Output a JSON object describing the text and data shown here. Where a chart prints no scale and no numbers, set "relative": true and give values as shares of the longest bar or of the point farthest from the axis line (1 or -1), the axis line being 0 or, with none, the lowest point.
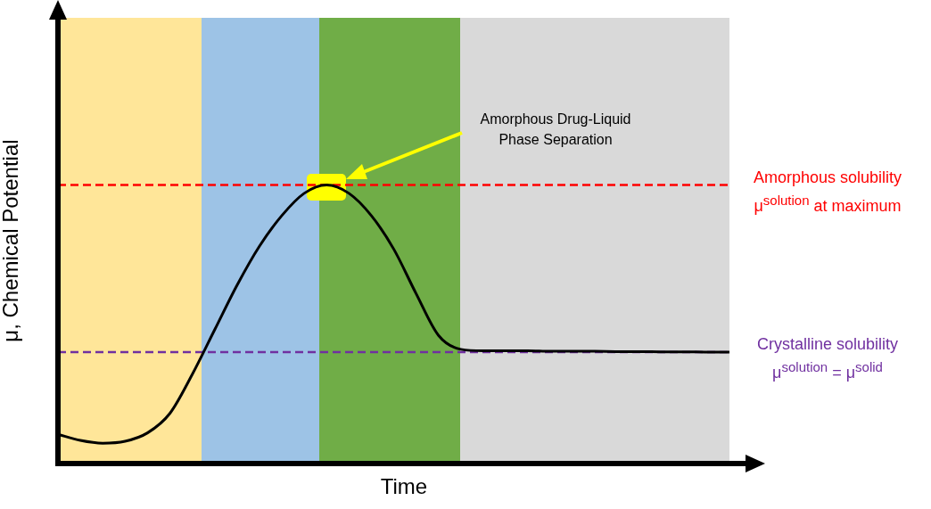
{
  "chart_data": {
    "type": "line",
    "relative": true,
    "xlabel": "Time",
    "ylabel": "μ, Chemical Potential",
    "categories": [
      null,
      null,
      null,
      null,
      null,
      null,
      null,
      null,
      null,
      null,
      null,
      null,
      null,
      null,
      null,
      null,
      null,
      null,
      null,
      null,
      null,
      null,
      null,
      null,
      null,
      null,
      null,
      null,
      null,
      null,
      null
    ],
    "series": [
      {
        "color": "#000000",
        "values": [
          0.105,
          0.083,
          0.073,
          0.08,
          0.11,
          0.18,
          0.32,
          0.48,
          0.64,
          0.78,
          0.89,
          0.97,
          1.0,
          0.97,
          0.89,
          0.77,
          0.61,
          0.46,
          0.41,
          0.405,
          0.405,
          0.405,
          0.403,
          0.403,
          0.403,
          0.402,
          0.402,
          0.401,
          0.401,
          0.4,
          0.4
        ]
      }
    ],
    "ref_lines": [
      {
        "axis": "y",
        "value": 1.0,
        "label": "Amorphous solubility\nμ$^{solution}$ at maximum",
        "color": "#ff0000",
        "line_style": "dashed"
      },
      {
        "axis": "y",
        "value": 0.4,
        "label": "Crystalline solubility\nμ$^{solution}$ = μ$^{solid}$",
        "color": "#7030a0",
        "line_style": "dashed"
      }
    ],
    "annotations": [
      "Amorphous Drug-Liquid\nPhase Separation"
    ],
    "legend": false,
    "tick_labels": false,
    "marker": "none",
    "line_style": "solid"
  }
}
